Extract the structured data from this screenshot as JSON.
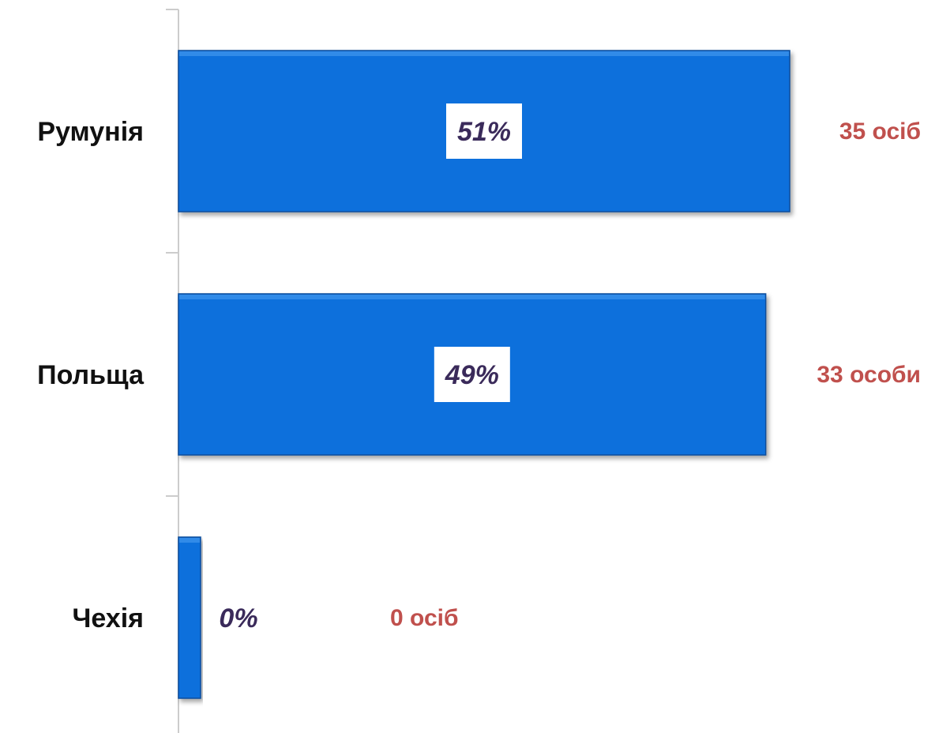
{
  "chart_data": {
    "type": "bar",
    "orientation": "horizontal",
    "categories": [
      "Румунія",
      "Польща",
      "Чехія"
    ],
    "values": [
      51,
      49,
      0
    ],
    "data_labels": [
      "51%",
      "49%",
      "0%"
    ],
    "counts": [
      35,
      33,
      0
    ],
    "count_labels": [
      "35 осіб",
      "33 особи",
      "0 осіб"
    ],
    "xlim": [
      0,
      51
    ],
    "grid": false,
    "legend": "none",
    "colors": {
      "bar": "#0a6fdc",
      "bar_edge": "#0a4d9c",
      "axis": "#cccccc",
      "category_text": "#111111",
      "percent_text": "#3a2a5a",
      "percent_box": "#ffffff",
      "count_text": "#c0504d"
    }
  }
}
